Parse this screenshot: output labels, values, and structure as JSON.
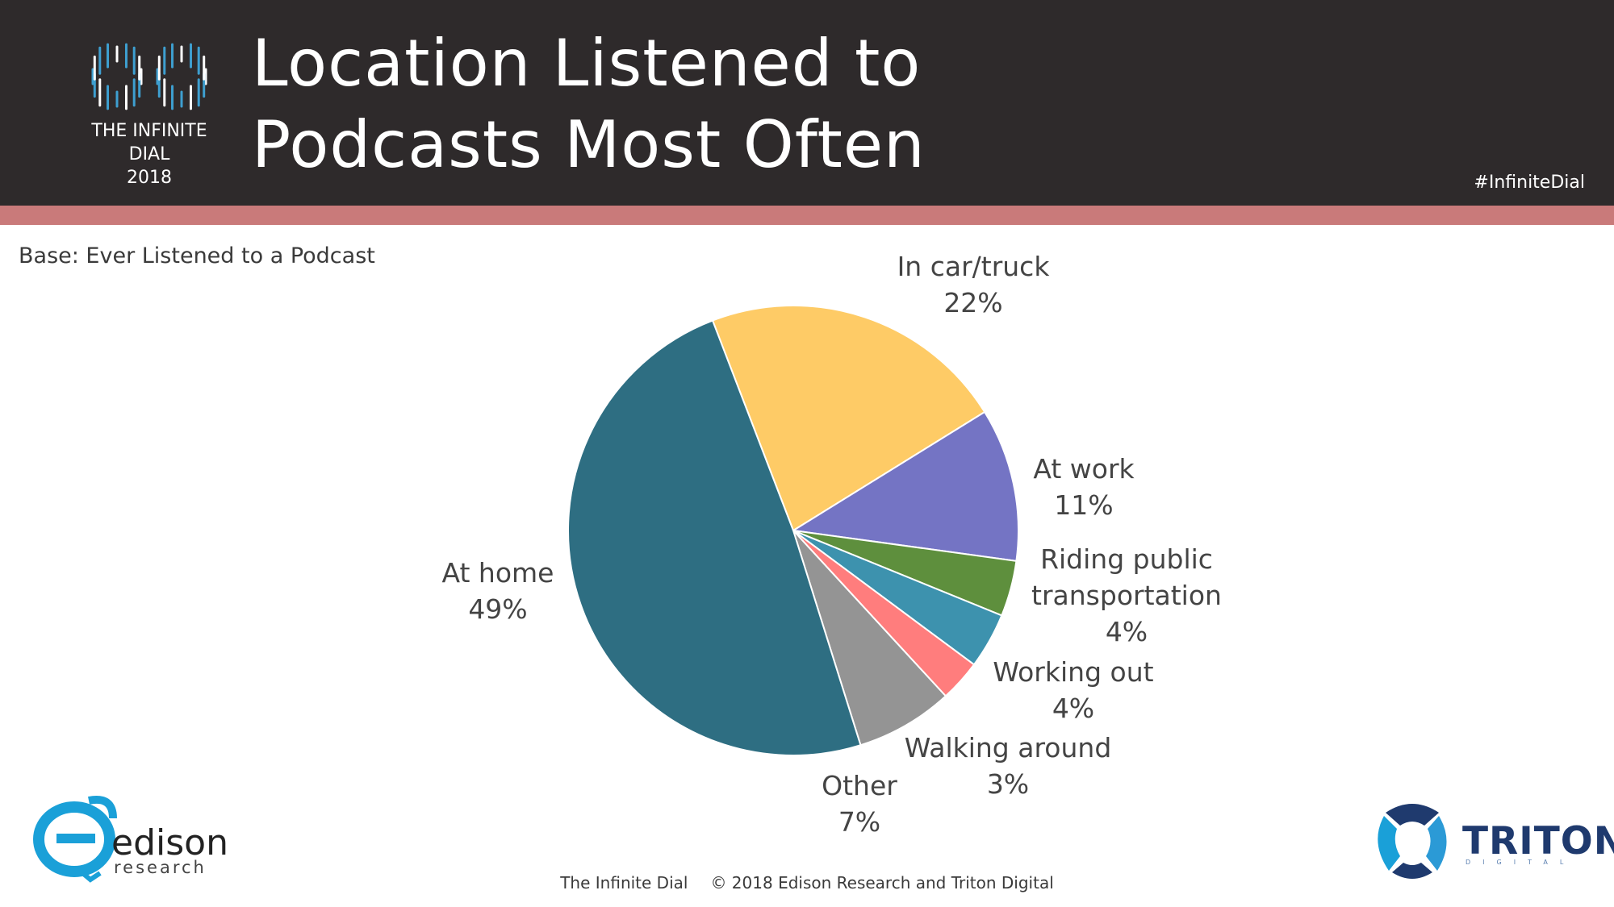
{
  "header": {
    "title_line1": "Location Listened to",
    "title_line2": "Podcasts Most Often",
    "brand_line1": "THE INFINITE DIAL",
    "brand_line2": "2018",
    "hashtag": "#InfiniteDial"
  },
  "base_note": "Base: Ever Listened to a Podcast",
  "footer": {
    "left": "The Infinite Dial",
    "right": "© 2018 Edison Research and Triton Digital"
  },
  "logos": {
    "edison_name": "edison",
    "edison_sub": "research",
    "triton_name": "TRITON",
    "triton_sub": "DIGITAL"
  },
  "colors": {
    "header_bg": "#2e2a2b",
    "accent_bar": "#c97a7a"
  },
  "chart_data": {
    "type": "pie",
    "title": "Location Listened to Podcasts Most Often",
    "start_angle_deg": -21,
    "slices": [
      {
        "label": "In car/truck",
        "value": 22,
        "value_label": "22%",
        "color": "#FECB66"
      },
      {
        "label": "At work",
        "value": 11,
        "value_label": "11%",
        "color": "#7474C4"
      },
      {
        "label": "Riding public transportation",
        "label_lines": [
          "Riding public",
          "transportation"
        ],
        "value": 4,
        "value_label": "4%",
        "color": "#5E8F3D"
      },
      {
        "label": "Working out",
        "value": 4,
        "value_label": "4%",
        "color": "#3D92AE"
      },
      {
        "label": "Walking around",
        "value": 3,
        "value_label": "3%",
        "color": "#FF7D7D"
      },
      {
        "label": "Other",
        "value": 7,
        "value_label": "7%",
        "color": "#949494"
      },
      {
        "label": "At home",
        "value": 49,
        "value_label": "49%",
        "color": "#2E6E82"
      }
    ]
  }
}
